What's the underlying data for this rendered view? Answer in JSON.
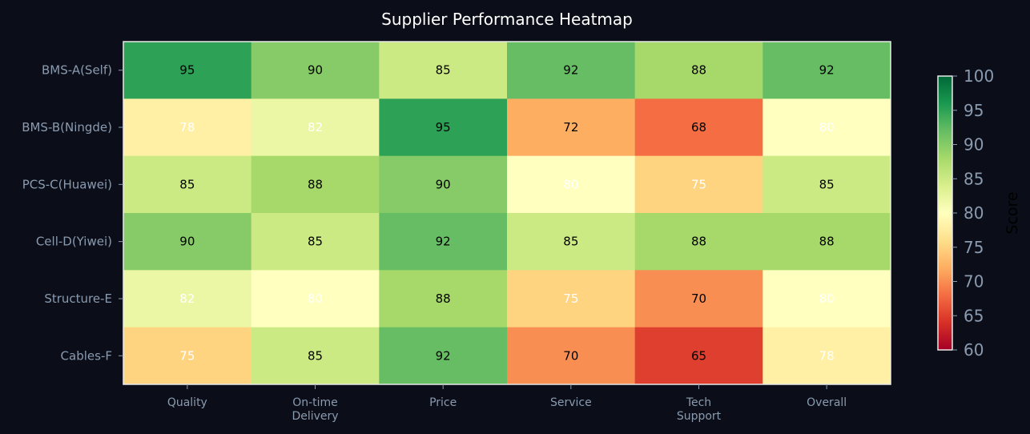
{
  "chart_data": {
    "type": "heatmap",
    "title": "Supplier Performance Heatmap",
    "rows": [
      "BMS-A(Self)",
      "BMS-B(Ningde)",
      "PCS-C(Huawei)",
      "Cell-D(Yiwei)",
      "Structure-E",
      "Cables-F"
    ],
    "columns": [
      "Quality",
      "On-time\nDelivery",
      "Price",
      "Service",
      "Tech\nSupport",
      "Overall"
    ],
    "values": [
      [
        95,
        90,
        85,
        92,
        88,
        92
      ],
      [
        78,
        82,
        95,
        72,
        68,
        80
      ],
      [
        85,
        88,
        90,
        80,
        75,
        85
      ],
      [
        90,
        85,
        92,
        85,
        88,
        88
      ],
      [
        82,
        80,
        88,
        75,
        70,
        80
      ],
      [
        75,
        85,
        92,
        70,
        65,
        78
      ]
    ],
    "colormap": "RdYlGn",
    "vmin": 60,
    "vmax": 100,
    "colorbar": {
      "label": "Score",
      "ticks": [
        60,
        65,
        70,
        75,
        80,
        85,
        90,
        95,
        100
      ]
    },
    "colors": {
      "background": "#0b0e18",
      "tick_text": "#8a9bb0",
      "title_text": "#ffffff"
    }
  }
}
